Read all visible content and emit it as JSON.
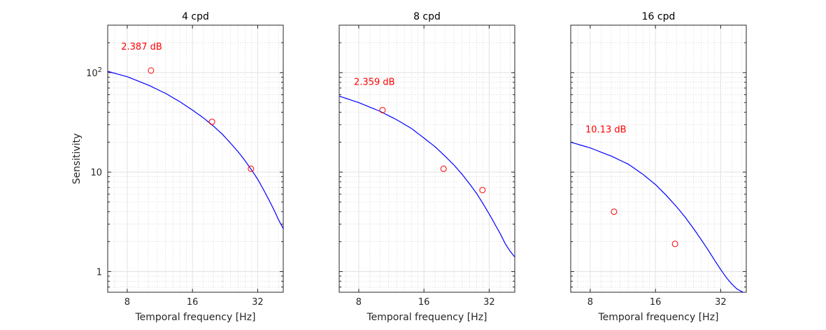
{
  "chart_data": [
    {
      "type": "line",
      "title": "4 cpd",
      "xlabel": "Temporal frequency [Hz]",
      "ylabel": "Sensitivity",
      "xscale": "log2",
      "yscale": "log10",
      "xlim": [
        6.5,
        42
      ],
      "ylim": [
        0.62,
        300
      ],
      "xticks": [
        8,
        16,
        32
      ],
      "xtick_labels": [
        "8",
        "16",
        "32"
      ],
      "yticks": [
        1,
        10,
        100
      ],
      "ytick_labels": [
        "1",
        "10",
        "10^2"
      ],
      "grid": true,
      "show_ylabel": true,
      "show_yticklabels": true,
      "annotation": "2.387 dB",
      "annotation_color": "#ff0000",
      "annotation_pos": [
        7.5,
        170
      ],
      "series": [
        {
          "name": "fit",
          "kind": "line",
          "color": "#0000ff",
          "x": [
            6.5,
            8,
            10,
            12,
            14,
            16,
            18,
            20,
            22,
            24,
            26,
            28,
            30,
            32,
            34,
            36,
            38,
            40,
            42
          ],
          "y": [
            103,
            91,
            75,
            62,
            51,
            42,
            35,
            29,
            24,
            19.5,
            16,
            13,
            10.5,
            8.5,
            6.7,
            5.3,
            4.2,
            3.3,
            2.7
          ]
        },
        {
          "name": "data",
          "kind": "scatter",
          "color": "#ff0000",
          "x": [
            10.3,
            19.7,
            29.8
          ],
          "y": [
            105,
            32,
            10.8
          ]
        }
      ]
    },
    {
      "type": "line",
      "title": "8 cpd",
      "xlabel": "Temporal frequency [Hz]",
      "ylabel": "",
      "xscale": "log2",
      "yscale": "log10",
      "xlim": [
        6.5,
        42
      ],
      "ylim": [
        0.62,
        300
      ],
      "xticks": [
        8,
        16,
        32
      ],
      "xtick_labels": [
        "8",
        "16",
        "32"
      ],
      "yticks": [
        1,
        10,
        100
      ],
      "ytick_labels": [
        "",
        "",
        ""
      ],
      "grid": true,
      "show_ylabel": false,
      "show_yticklabels": false,
      "annotation": "2.359 dB",
      "annotation_color": "#ff0000",
      "annotation_pos": [
        7.6,
        75
      ],
      "series": [
        {
          "name": "fit",
          "kind": "line",
          "color": "#0000ff",
          "x": [
            6.5,
            8,
            10,
            12,
            14,
            16,
            18,
            20,
            22,
            24,
            26,
            28,
            30,
            32,
            34,
            36,
            38,
            40,
            42
          ],
          "y": [
            58,
            50,
            41,
            33.5,
            27.5,
            22,
            18,
            14.5,
            11.8,
            9.5,
            7.6,
            6.1,
            4.8,
            3.8,
            3.0,
            2.4,
            1.9,
            1.6,
            1.4
          ]
        },
        {
          "name": "data",
          "kind": "scatter",
          "color": "#ff0000",
          "x": [
            10.3,
            19.7,
            29.8
          ],
          "y": [
            42,
            10.8,
            6.6
          ]
        }
      ]
    },
    {
      "type": "line",
      "title": "16 cpd",
      "xlabel": "Temporal frequency [Hz]",
      "ylabel": "",
      "xscale": "log2",
      "yscale": "log10",
      "xlim": [
        6.5,
        42
      ],
      "ylim": [
        0.62,
        300
      ],
      "xticks": [
        8,
        16,
        32
      ],
      "xtick_labels": [
        "8",
        "16",
        "32"
      ],
      "yticks": [
        1,
        10,
        100
      ],
      "ytick_labels": [
        "",
        "",
        ""
      ],
      "grid": true,
      "show_ylabel": false,
      "show_yticklabels": false,
      "annotation": "10.13 dB",
      "annotation_color": "#ff0000",
      "annotation_pos": [
        7.6,
        25
      ],
      "series": [
        {
          "name": "fit",
          "kind": "line",
          "color": "#0000ff",
          "x": [
            6.5,
            8,
            10,
            12,
            14,
            16,
            18,
            20,
            22,
            24,
            26,
            28,
            30,
            32,
            34,
            36,
            38,
            40,
            42
          ],
          "y": [
            20,
            17.5,
            14.5,
            12,
            9.5,
            7.5,
            5.8,
            4.5,
            3.5,
            2.7,
            2.1,
            1.65,
            1.3,
            1.05,
            0.87,
            0.75,
            0.67,
            0.63,
            0.6
          ]
        },
        {
          "name": "data",
          "kind": "scatter",
          "color": "#ff0000",
          "x": [
            10.3,
            19.7
          ],
          "y": [
            4.0,
            1.9
          ]
        }
      ]
    }
  ]
}
